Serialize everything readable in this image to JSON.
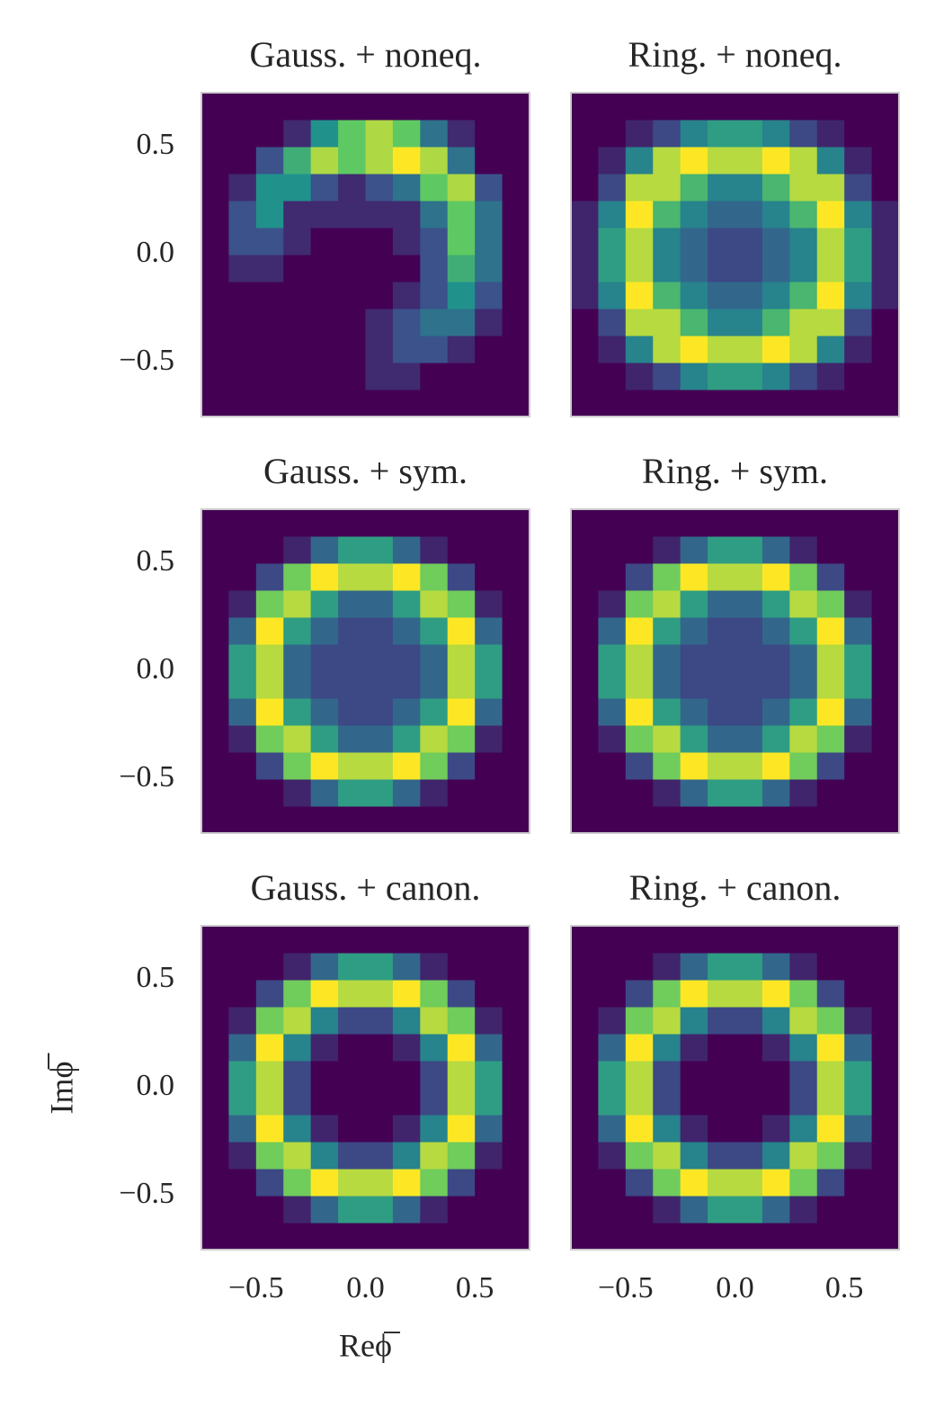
{
  "chart_data": [
    {
      "type": "hist2d",
      "title": "Gauss. + noneq.",
      "colormap": "viridis",
      "xlim": [
        -0.75,
        0.75
      ],
      "ylim": [
        -0.75,
        0.75
      ],
      "yticks": [
        {
          "value": -0.5,
          "label": "−0.5"
        },
        {
          "value": 0,
          "label": "0.0"
        },
        {
          "value": 0.5,
          "label": "0.5"
        }
      ],
      "values": [
        [
          0,
          0,
          0,
          0,
          0,
          0,
          0,
          0,
          0,
          0,
          0,
          0
        ],
        [
          0,
          0,
          0,
          0,
          0,
          0,
          1,
          1,
          0,
          0,
          0,
          0
        ],
        [
          0,
          0,
          0,
          0,
          0,
          0,
          1,
          2,
          2,
          1,
          0,
          0
        ],
        [
          0,
          0,
          0,
          0,
          0,
          0,
          1,
          2,
          3,
          3,
          1,
          0
        ],
        [
          0,
          0,
          0,
          0,
          0,
          0,
          0,
          1,
          2,
          4,
          2,
          0
        ],
        [
          0,
          1,
          1,
          0,
          0,
          0,
          0,
          0,
          2,
          5,
          3,
          0
        ],
        [
          0,
          2,
          2,
          1,
          0,
          0,
          0,
          1,
          2,
          6,
          3,
          0
        ],
        [
          0,
          2,
          4,
          1,
          1,
          1,
          1,
          1,
          3,
          6,
          3,
          0
        ],
        [
          0,
          1,
          4,
          4,
          2,
          1,
          2,
          3,
          6,
          7,
          2,
          0
        ],
        [
          0,
          0,
          2,
          5,
          7,
          6,
          7,
          8,
          7,
          3,
          0,
          0
        ],
        [
          0,
          0,
          0,
          1,
          4,
          6,
          7,
          6,
          3,
          1,
          0,
          0
        ],
        [
          0,
          0,
          0,
          0,
          0,
          0,
          0,
          0,
          0,
          0,
          0,
          0
        ]
      ]
    },
    {
      "type": "hist2d",
      "title": "Ring. + noneq.",
      "colormap": "viridis",
      "xlim": [
        -0.75,
        0.75
      ],
      "ylim": [
        -0.75,
        0.75
      ],
      "values": [
        [
          0,
          0,
          0,
          0,
          0,
          0,
          0,
          0,
          0,
          0,
          0,
          0
        ],
        [
          0,
          0,
          1,
          2,
          4,
          5,
          5,
          4,
          2,
          1,
          0,
          0
        ],
        [
          0,
          1,
          4,
          8,
          9,
          8,
          8,
          9,
          8,
          4,
          1,
          0
        ],
        [
          0,
          2,
          8,
          8,
          6,
          4,
          4,
          6,
          8,
          8,
          2,
          0
        ],
        [
          1,
          4,
          9,
          6,
          4,
          3,
          3,
          4,
          6,
          9,
          4,
          1
        ],
        [
          1,
          5,
          8,
          4,
          3,
          2,
          2,
          3,
          4,
          8,
          5,
          1
        ],
        [
          1,
          5,
          8,
          4,
          3,
          2,
          2,
          3,
          4,
          8,
          5,
          1
        ],
        [
          1,
          4,
          9,
          6,
          4,
          3,
          3,
          4,
          6,
          9,
          4,
          1
        ],
        [
          0,
          2,
          8,
          8,
          6,
          4,
          4,
          6,
          8,
          8,
          2,
          0
        ],
        [
          0,
          1,
          4,
          8,
          9,
          8,
          8,
          9,
          8,
          4,
          1,
          0
        ],
        [
          0,
          0,
          1,
          2,
          4,
          5,
          5,
          4,
          2,
          1,
          0,
          0
        ],
        [
          0,
          0,
          0,
          0,
          0,
          0,
          0,
          0,
          0,
          0,
          0,
          0
        ]
      ]
    },
    {
      "type": "hist2d",
      "title": "Gauss. + sym.",
      "colormap": "viridis",
      "xlim": [
        -0.75,
        0.75
      ],
      "ylim": [
        -0.75,
        0.75
      ],
      "yticks": [
        {
          "value": -0.5,
          "label": "−0.5"
        },
        {
          "value": 0,
          "label": "0.0"
        },
        {
          "value": 0.5,
          "label": "0.5"
        }
      ],
      "values": [
        [
          0,
          0,
          0,
          0,
          0,
          0,
          0,
          0,
          0,
          0,
          0,
          0
        ],
        [
          0,
          0,
          0,
          1,
          3,
          5,
          5,
          3,
          1,
          0,
          0,
          0
        ],
        [
          0,
          0,
          2,
          7,
          9,
          8,
          8,
          9,
          7,
          2,
          0,
          0
        ],
        [
          0,
          1,
          7,
          8,
          5,
          3,
          3,
          5,
          8,
          7,
          1,
          0
        ],
        [
          0,
          3,
          9,
          5,
          3,
          2,
          2,
          3,
          5,
          9,
          3,
          0
        ],
        [
          0,
          5,
          8,
          3,
          2,
          2,
          2,
          2,
          3,
          8,
          5,
          0
        ],
        [
          0,
          5,
          8,
          3,
          2,
          2,
          2,
          2,
          3,
          8,
          5,
          0
        ],
        [
          0,
          3,
          9,
          5,
          3,
          2,
          2,
          3,
          5,
          9,
          3,
          0
        ],
        [
          0,
          1,
          7,
          8,
          5,
          3,
          3,
          5,
          8,
          7,
          1,
          0
        ],
        [
          0,
          0,
          2,
          7,
          9,
          8,
          8,
          9,
          7,
          2,
          0,
          0
        ],
        [
          0,
          0,
          0,
          1,
          3,
          5,
          5,
          3,
          1,
          0,
          0,
          0
        ],
        [
          0,
          0,
          0,
          0,
          0,
          0,
          0,
          0,
          0,
          0,
          0,
          0
        ]
      ]
    },
    {
      "type": "hist2d",
      "title": "Ring. + sym.",
      "colormap": "viridis",
      "xlim": [
        -0.75,
        0.75
      ],
      "ylim": [
        -0.75,
        0.75
      ],
      "values": [
        [
          0,
          0,
          0,
          0,
          0,
          0,
          0,
          0,
          0,
          0,
          0,
          0
        ],
        [
          0,
          0,
          0,
          1,
          3,
          5,
          5,
          3,
          1,
          0,
          0,
          0
        ],
        [
          0,
          0,
          2,
          7,
          9,
          8,
          8,
          9,
          7,
          2,
          0,
          0
        ],
        [
          0,
          1,
          7,
          8,
          5,
          3,
          3,
          5,
          8,
          7,
          1,
          0
        ],
        [
          0,
          3,
          9,
          5,
          3,
          2,
          2,
          3,
          5,
          9,
          3,
          0
        ],
        [
          0,
          5,
          8,
          3,
          2,
          2,
          2,
          2,
          3,
          8,
          5,
          0
        ],
        [
          0,
          5,
          8,
          3,
          2,
          2,
          2,
          2,
          3,
          8,
          5,
          0
        ],
        [
          0,
          3,
          9,
          5,
          3,
          2,
          2,
          3,
          5,
          9,
          3,
          0
        ],
        [
          0,
          1,
          7,
          8,
          5,
          3,
          3,
          5,
          8,
          7,
          1,
          0
        ],
        [
          0,
          0,
          2,
          7,
          9,
          8,
          8,
          9,
          7,
          2,
          0,
          0
        ],
        [
          0,
          0,
          0,
          1,
          3,
          5,
          5,
          3,
          1,
          0,
          0,
          0
        ],
        [
          0,
          0,
          0,
          0,
          0,
          0,
          0,
          0,
          0,
          0,
          0,
          0
        ]
      ]
    },
    {
      "type": "hist2d",
      "title": "Gauss. + canon.",
      "colormap": "viridis",
      "xlim": [
        -0.75,
        0.75
      ],
      "ylim": [
        -0.75,
        0.75
      ],
      "xlabel": "Reϕ̅",
      "ylabel": "Imϕ̅",
      "xticks": [
        {
          "value": -0.5,
          "label": "−0.5"
        },
        {
          "value": 0,
          "label": "0.0"
        },
        {
          "value": 0.5,
          "label": "0.5"
        }
      ],
      "yticks": [
        {
          "value": -0.5,
          "label": "−0.5"
        },
        {
          "value": 0,
          "label": "0.0"
        },
        {
          "value": 0.5,
          "label": "0.5"
        }
      ],
      "values": [
        [
          0,
          0,
          0,
          0,
          0,
          0,
          0,
          0,
          0,
          0,
          0,
          0
        ],
        [
          0,
          0,
          0,
          1,
          3,
          5,
          5,
          3,
          1,
          0,
          0,
          0
        ],
        [
          0,
          0,
          2,
          7,
          9,
          8,
          8,
          9,
          7,
          2,
          0,
          0
        ],
        [
          0,
          1,
          7,
          8,
          4,
          2,
          2,
          4,
          8,
          7,
          1,
          0
        ],
        [
          0,
          3,
          9,
          4,
          1,
          0,
          0,
          1,
          4,
          9,
          3,
          0
        ],
        [
          0,
          5,
          8,
          2,
          0,
          0,
          0,
          0,
          2,
          8,
          5,
          0
        ],
        [
          0,
          5,
          8,
          2,
          0,
          0,
          0,
          0,
          2,
          8,
          5,
          0
        ],
        [
          0,
          3,
          9,
          4,
          1,
          0,
          0,
          1,
          4,
          9,
          3,
          0
        ],
        [
          0,
          1,
          7,
          8,
          4,
          2,
          2,
          4,
          8,
          7,
          1,
          0
        ],
        [
          0,
          0,
          2,
          7,
          9,
          8,
          8,
          9,
          7,
          2,
          0,
          0
        ],
        [
          0,
          0,
          0,
          1,
          3,
          5,
          5,
          3,
          1,
          0,
          0,
          0
        ],
        [
          0,
          0,
          0,
          0,
          0,
          0,
          0,
          0,
          0,
          0,
          0,
          0
        ]
      ]
    },
    {
      "type": "hist2d",
      "title": "Ring. + canon.",
      "colormap": "viridis",
      "xlim": [
        -0.75,
        0.75
      ],
      "ylim": [
        -0.75,
        0.75
      ],
      "xticks": [
        {
          "value": -0.5,
          "label": "−0.5"
        },
        {
          "value": 0,
          "label": "0.0"
        },
        {
          "value": 0.5,
          "label": "0.5"
        }
      ],
      "values": [
        [
          0,
          0,
          0,
          0,
          0,
          0,
          0,
          0,
          0,
          0,
          0,
          0
        ],
        [
          0,
          0,
          0,
          1,
          3,
          5,
          5,
          3,
          1,
          0,
          0,
          0
        ],
        [
          0,
          0,
          2,
          7,
          9,
          8,
          8,
          9,
          7,
          2,
          0,
          0
        ],
        [
          0,
          1,
          7,
          8,
          4,
          2,
          2,
          4,
          8,
          7,
          1,
          0
        ],
        [
          0,
          3,
          9,
          4,
          1,
          0,
          0,
          1,
          4,
          9,
          3,
          0
        ],
        [
          0,
          5,
          8,
          2,
          0,
          0,
          0,
          0,
          2,
          8,
          5,
          0
        ],
        [
          0,
          5,
          8,
          2,
          0,
          0,
          0,
          0,
          2,
          8,
          5,
          0
        ],
        [
          0,
          3,
          9,
          4,
          1,
          0,
          0,
          1,
          4,
          9,
          3,
          0
        ],
        [
          0,
          1,
          7,
          8,
          4,
          2,
          2,
          4,
          8,
          7,
          1,
          0
        ],
        [
          0,
          0,
          2,
          7,
          9,
          8,
          8,
          9,
          7,
          2,
          0,
          0
        ],
        [
          0,
          0,
          0,
          1,
          3,
          5,
          5,
          3,
          1,
          0,
          0,
          0
        ],
        [
          0,
          0,
          0,
          0,
          0,
          0,
          0,
          0,
          0,
          0,
          0,
          0
        ]
      ]
    }
  ]
}
